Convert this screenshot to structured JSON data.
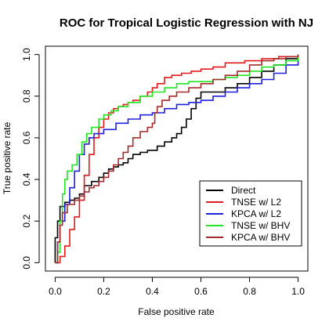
{
  "chart_data": {
    "type": "line",
    "title": "ROC for Tropical Logistic Regression with NJ",
    "xlabel": "False positive rate",
    "ylabel": "True positive rate",
    "xlim": [
      -0.04,
      1.04
    ],
    "ylim": [
      -0.04,
      1.04
    ],
    "xticks": [
      "0.0",
      "0.2",
      "0.4",
      "0.6",
      "0.8",
      "1.0"
    ],
    "yticks": [
      "0.0",
      "0.2",
      "0.4",
      "0.6",
      "0.8",
      "1.0"
    ],
    "legend_position": "bottom-right",
    "grid": false,
    "series": [
      {
        "name": "Direct",
        "color": "#000000",
        "points": [
          [
            0,
            0
          ],
          [
            0,
            0.12
          ],
          [
            0.01,
            0.2
          ],
          [
            0.02,
            0.27
          ],
          [
            0.04,
            0.29
          ],
          [
            0.06,
            0.3
          ],
          [
            0.08,
            0.31
          ],
          [
            0.1,
            0.33
          ],
          [
            0.12,
            0.37
          ],
          [
            0.15,
            0.39
          ],
          [
            0.18,
            0.41
          ],
          [
            0.2,
            0.43
          ],
          [
            0.22,
            0.45
          ],
          [
            0.24,
            0.46
          ],
          [
            0.26,
            0.47
          ],
          [
            0.28,
            0.48
          ],
          [
            0.3,
            0.5
          ],
          [
            0.32,
            0.52
          ],
          [
            0.35,
            0.53
          ],
          [
            0.38,
            0.54
          ],
          [
            0.42,
            0.56
          ],
          [
            0.45,
            0.58
          ],
          [
            0.48,
            0.6
          ],
          [
            0.5,
            0.62
          ],
          [
            0.52,
            0.65
          ],
          [
            0.54,
            0.69
          ],
          [
            0.56,
            0.74
          ],
          [
            0.58,
            0.79
          ],
          [
            0.6,
            0.82
          ],
          [
            0.65,
            0.82
          ],
          [
            0.7,
            0.84
          ],
          [
            0.75,
            0.86
          ],
          [
            0.8,
            0.89
          ],
          [
            0.85,
            0.92
          ],
          [
            0.9,
            0.95
          ],
          [
            0.95,
            0.98
          ],
          [
            1,
            1
          ]
        ]
      },
      {
        "name": "TNSE w/ L2",
        "color": "#e31a1c",
        "points": [
          [
            0,
            0
          ],
          [
            0.02,
            0.03
          ],
          [
            0.04,
            0.08
          ],
          [
            0.06,
            0.16
          ],
          [
            0.08,
            0.22
          ],
          [
            0.1,
            0.3
          ],
          [
            0.12,
            0.42
          ],
          [
            0.14,
            0.52
          ],
          [
            0.16,
            0.6
          ],
          [
            0.18,
            0.65
          ],
          [
            0.2,
            0.69
          ],
          [
            0.22,
            0.72
          ],
          [
            0.24,
            0.74
          ],
          [
            0.26,
            0.75
          ],
          [
            0.28,
            0.76
          ],
          [
            0.3,
            0.77
          ],
          [
            0.32,
            0.78
          ],
          [
            0.35,
            0.8
          ],
          [
            0.38,
            0.82
          ],
          [
            0.4,
            0.84
          ],
          [
            0.42,
            0.86
          ],
          [
            0.45,
            0.89
          ],
          [
            0.48,
            0.9
          ],
          [
            0.52,
            0.91
          ],
          [
            0.56,
            0.92
          ],
          [
            0.6,
            0.93
          ],
          [
            0.65,
            0.94
          ],
          [
            0.7,
            0.96
          ],
          [
            0.78,
            0.97
          ],
          [
            0.85,
            0.98
          ],
          [
            0.92,
            0.99
          ],
          [
            1,
            1
          ]
        ]
      },
      {
        "name": "KPCA w/ L2",
        "color": "#1f1fe0",
        "points": [
          [
            0,
            0
          ],
          [
            0.01,
            0.1
          ],
          [
            0.02,
            0.2
          ],
          [
            0.04,
            0.28
          ],
          [
            0.06,
            0.36
          ],
          [
            0.08,
            0.44
          ],
          [
            0.1,
            0.52
          ],
          [
            0.12,
            0.57
          ],
          [
            0.14,
            0.6
          ],
          [
            0.16,
            0.62
          ],
          [
            0.2,
            0.64
          ],
          [
            0.25,
            0.67
          ],
          [
            0.3,
            0.69
          ],
          [
            0.35,
            0.71
          ],
          [
            0.4,
            0.72
          ],
          [
            0.45,
            0.74
          ],
          [
            0.5,
            0.76
          ],
          [
            0.55,
            0.77
          ],
          [
            0.6,
            0.78
          ],
          [
            0.65,
            0.8
          ],
          [
            0.7,
            0.82
          ],
          [
            0.75,
            0.84
          ],
          [
            0.8,
            0.86
          ],
          [
            0.85,
            0.88
          ],
          [
            0.9,
            0.91
          ],
          [
            0.95,
            0.95
          ],
          [
            1,
            1
          ]
        ]
      },
      {
        "name": "TNSE w/ BHV",
        "color": "#22e622",
        "points": [
          [
            0,
            0
          ],
          [
            0.01,
            0.05
          ],
          [
            0.02,
            0.2
          ],
          [
            0.03,
            0.33
          ],
          [
            0.04,
            0.4
          ],
          [
            0.05,
            0.44
          ],
          [
            0.07,
            0.47
          ],
          [
            0.09,
            0.52
          ],
          [
            0.11,
            0.58
          ],
          [
            0.13,
            0.62
          ],
          [
            0.15,
            0.65
          ],
          [
            0.18,
            0.69
          ],
          [
            0.2,
            0.71
          ],
          [
            0.23,
            0.73
          ],
          [
            0.26,
            0.75
          ],
          [
            0.3,
            0.77
          ],
          [
            0.35,
            0.8
          ],
          [
            0.4,
            0.82
          ],
          [
            0.45,
            0.84
          ],
          [
            0.5,
            0.86
          ],
          [
            0.55,
            0.87
          ],
          [
            0.6,
            0.87
          ],
          [
            0.65,
            0.88
          ],
          [
            0.7,
            0.89
          ],
          [
            0.75,
            0.9
          ],
          [
            0.8,
            0.92
          ],
          [
            0.85,
            0.94
          ],
          [
            0.9,
            0.95
          ],
          [
            0.95,
            0.97
          ],
          [
            1,
            1
          ]
        ]
      },
      {
        "name": "KPCA w/ BHV",
        "color": "#a52a2a",
        "points": [
          [
            0,
            0
          ],
          [
            0.01,
            0.1
          ],
          [
            0.02,
            0.18
          ],
          [
            0.03,
            0.24
          ],
          [
            0.05,
            0.28
          ],
          [
            0.08,
            0.3
          ],
          [
            0.1,
            0.32
          ],
          [
            0.12,
            0.34
          ],
          [
            0.14,
            0.36
          ],
          [
            0.16,
            0.37
          ],
          [
            0.18,
            0.39
          ],
          [
            0.2,
            0.41
          ],
          [
            0.22,
            0.44
          ],
          [
            0.24,
            0.47
          ],
          [
            0.26,
            0.5
          ],
          [
            0.28,
            0.53
          ],
          [
            0.3,
            0.56
          ],
          [
            0.32,
            0.6
          ],
          [
            0.35,
            0.63
          ],
          [
            0.38,
            0.65
          ],
          [
            0.4,
            0.67
          ],
          [
            0.41,
            0.72
          ],
          [
            0.42,
            0.75
          ],
          [
            0.44,
            0.78
          ],
          [
            0.47,
            0.8
          ],
          [
            0.5,
            0.82
          ],
          [
            0.55,
            0.84
          ],
          [
            0.6,
            0.86
          ],
          [
            0.65,
            0.88
          ],
          [
            0.7,
            0.9
          ],
          [
            0.75,
            0.92
          ],
          [
            0.8,
            0.95
          ],
          [
            0.85,
            0.97
          ],
          [
            0.9,
            0.98
          ],
          [
            0.95,
            0.99
          ],
          [
            1,
            1
          ]
        ]
      }
    ]
  }
}
